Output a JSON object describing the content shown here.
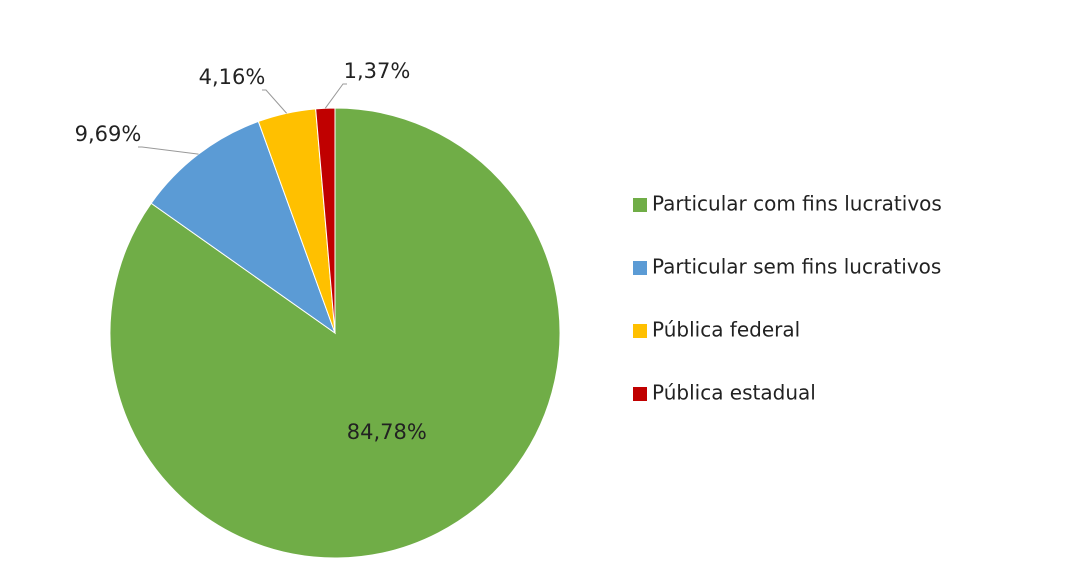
{
  "chart_data": {
    "type": "pie",
    "categories": [
      "Particular com fins lucrativos",
      "Particular sem fins lucrativos",
      "Pública federal",
      "Pública estadual"
    ],
    "values": [
      84.78,
      9.69,
      4.16,
      1.37
    ],
    "value_labels": [
      "84,78%",
      "9,69%",
      "4,16%",
      "1,37%"
    ],
    "colors": [
      "#70ad47",
      "#5b9bd5",
      "#ffc000",
      "#c00000"
    ],
    "legend": "right"
  }
}
